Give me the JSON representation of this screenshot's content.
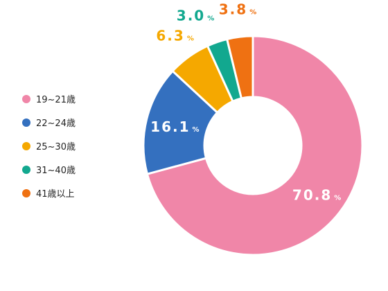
{
  "chart_data": {
    "type": "pie",
    "variant": "donut",
    "categories": [
      "19~21歳",
      "22~24歳",
      "25~30歳",
      "31~40歳",
      "41歳以上"
    ],
    "values": [
      70.8,
      16.1,
      6.3,
      3.0,
      3.8
    ],
    "value_labels": [
      "70.8",
      "16.1",
      "6.3",
      "3.0",
      "3.8"
    ],
    "unit": "%",
    "colors": [
      "#f086a8",
      "#3470bf",
      "#f5a800",
      "#12a88f",
      "#ef7112"
    ],
    "legend_position": "left",
    "start": "top",
    "direction": "clockwise"
  }
}
